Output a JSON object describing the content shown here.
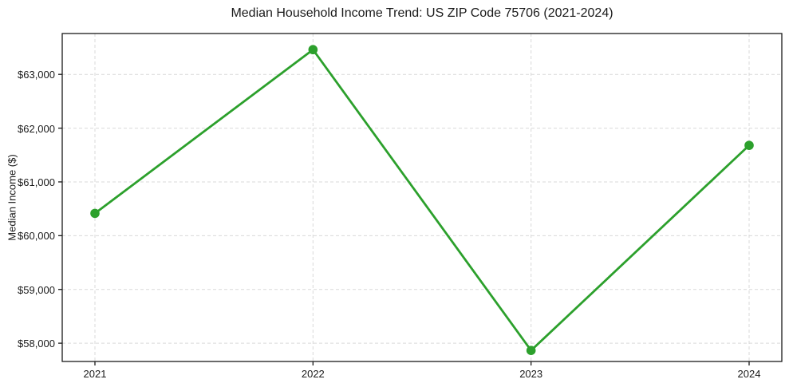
{
  "chart_data": {
    "type": "line",
    "title": "Median Household Income Trend: US ZIP Code 75706 (2021-2024)",
    "xlabel": "",
    "ylabel": "Median Income ($)",
    "series": [
      {
        "name": "Median Household Income",
        "x": [
          2021,
          2022,
          2023,
          2024
        ],
        "values": [
          60415,
          63460,
          57865,
          61680
        ]
      }
    ],
    "categories": [
      "2021",
      "2022",
      "2023",
      "2024"
    ],
    "xticks": [
      2021,
      2022,
      2023,
      2024
    ],
    "xtick_labels": [
      "2021",
      "2022",
      "2023",
      "2024"
    ],
    "yticks": [
      58000,
      59000,
      60000,
      61000,
      62000,
      63000
    ],
    "ytick_labels": [
      "$58,000",
      "$59,000",
      "$60,000",
      "$61,000",
      "$62,000",
      "$63,000"
    ],
    "xlim": [
      2020.85,
      2024.15
    ],
    "ylim": [
      57660,
      63760
    ],
    "grid": true,
    "legend_position": "none",
    "colors": {
      "line": "#2ca02c",
      "marker": "#2ca02c",
      "grid": "#d9d9d9",
      "spine": "#1a1a1a",
      "text": "#1a1a1a",
      "background": "#ffffff"
    },
    "style": {
      "line_width": 2.8,
      "marker_radius": 5.8,
      "grid_dash": "4 3"
    }
  }
}
